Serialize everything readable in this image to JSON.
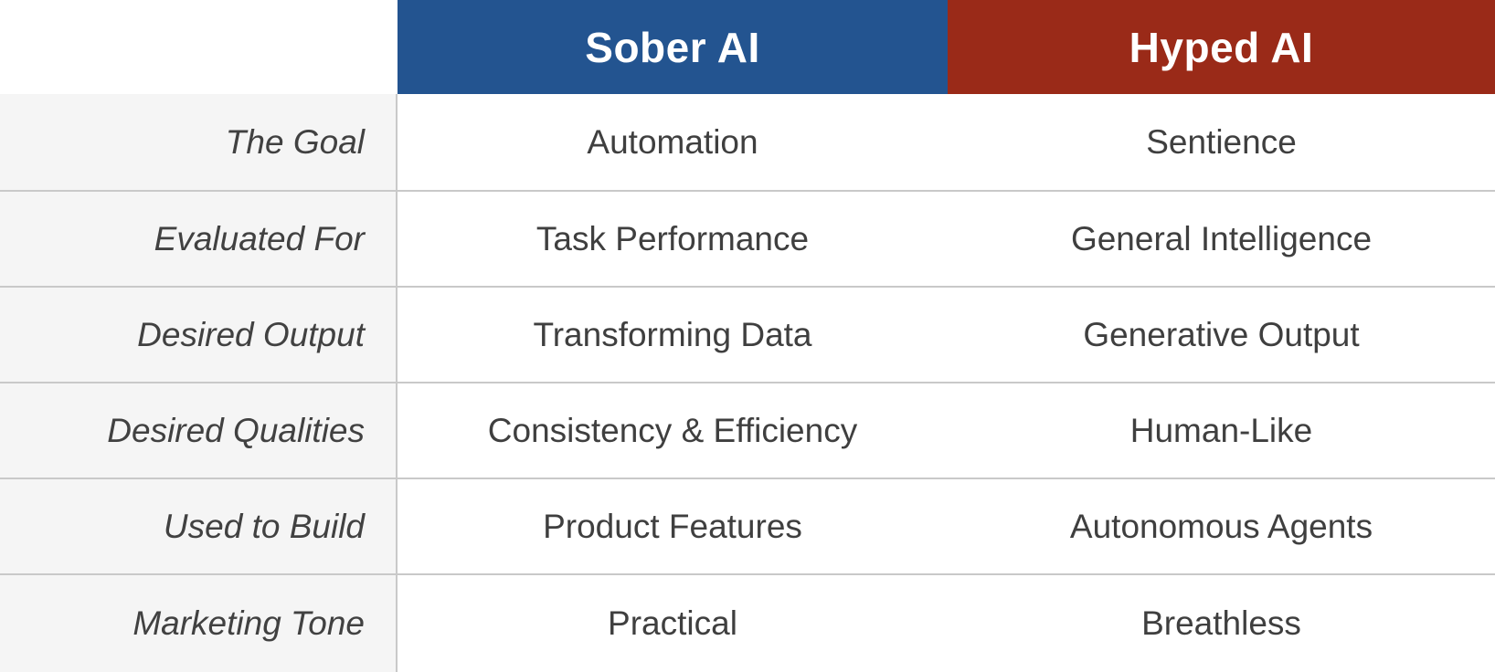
{
  "table": {
    "corner_label": "",
    "columns": [
      {
        "label": "Sober AI",
        "color": "#235490"
      },
      {
        "label": "Hyped AI",
        "color": "#9a2a18"
      }
    ],
    "rows": [
      {
        "label": "The Goal",
        "sober": "Automation",
        "hyped": "Sentience"
      },
      {
        "label": "Evaluated For",
        "sober": "Task Performance",
        "hyped": "General Intelligence"
      },
      {
        "label": "Desired Output",
        "sober": "Transforming Data",
        "hyped": "Generative Output"
      },
      {
        "label": "Desired Qualities",
        "sober": "Consistency & Efficiency",
        "hyped": "Human-Like"
      },
      {
        "label": "Used to Build",
        "sober": "Product Features",
        "hyped": "Autonomous Agents"
      },
      {
        "label": "Marketing Tone",
        "sober": "Practical",
        "hyped": "Breathless"
      }
    ]
  },
  "colors": {
    "sober_header_bg": "#235490",
    "hyped_header_bg": "#9a2a18",
    "header_text": "#ffffff",
    "row_label_bg": "#f5f5f5",
    "body_bg": "#ffffff",
    "divider": "#c9c9c9",
    "text": "#3f3f3f"
  },
  "chart_data": {
    "type": "table",
    "title": "Sober AI vs Hyped AI comparison",
    "columns": [
      "",
      "Sober AI",
      "Hyped AI"
    ],
    "rows": [
      [
        "The Goal",
        "Automation",
        "Sentience"
      ],
      [
        "Evaluated For",
        "Task Performance",
        "General Intelligence"
      ],
      [
        "Desired Output",
        "Transforming Data",
        "Generative Output"
      ],
      [
        "Desired Qualities",
        "Consistency & Efficiency",
        "Human-Like"
      ],
      [
        "Used to Build",
        "Product Features",
        "Autonomous Agents"
      ],
      [
        "Marketing Tone",
        "Practical",
        "Breathless"
      ]
    ],
    "layout_hints": {
      "header_colors": [
        "#235490",
        "#9a2a18"
      ],
      "row_label_style": "italic, right-aligned, light-gray background",
      "gridlines": "horizontal only"
    }
  }
}
